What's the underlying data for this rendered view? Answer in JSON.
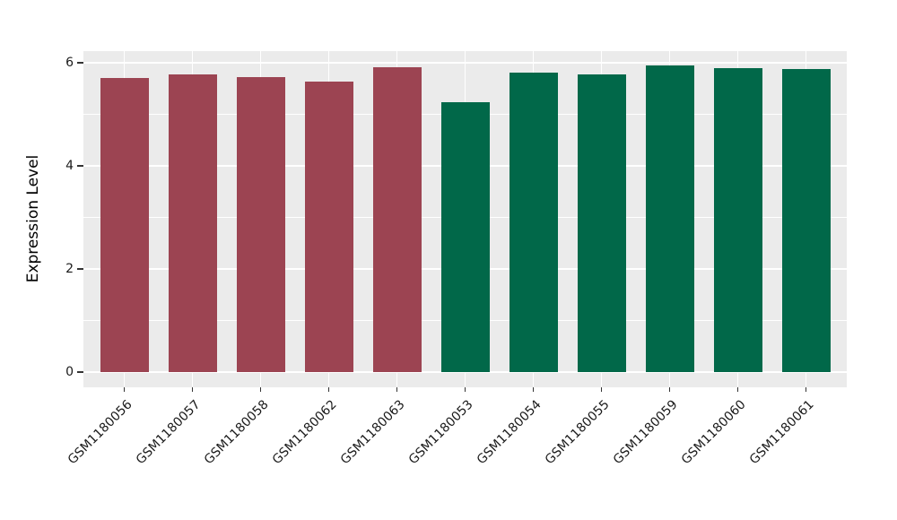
{
  "figure": {
    "background": "#FFFFFF"
  },
  "chart_data": {
    "type": "bar",
    "title": "",
    "xlabel": "",
    "ylabel": "Expression Level",
    "categories": [
      "GSM1180056",
      "GSM1180057",
      "GSM1180058",
      "GSM1180062",
      "GSM1180063",
      "GSM1180053",
      "GSM1180054",
      "GSM1180055",
      "GSM1180059",
      "GSM1180060",
      "GSM1180061"
    ],
    "values": [
      5.7,
      5.77,
      5.72,
      5.63,
      5.91,
      5.24,
      5.81,
      5.77,
      5.94,
      5.9,
      5.87
    ],
    "bar_colors": [
      "#9C4452",
      "#9C4452",
      "#9C4452",
      "#9C4452",
      "#9C4452",
      "#016849",
      "#016849",
      "#016849",
      "#016849",
      "#016849",
      "#016849"
    ],
    "groups": [
      {
        "color": "#9C4452",
        "samples": [
          "GSM1180056",
          "GSM1180057",
          "GSM1180058",
          "GSM1180062",
          "GSM1180063"
        ]
      },
      {
        "color": "#016849",
        "samples": [
          "GSM1180053",
          "GSM1180054",
          "GSM1180055",
          "GSM1180059",
          "GSM1180060",
          "GSM1180061"
        ]
      }
    ],
    "ylim": [
      -0.3,
      6.23
    ],
    "yticks": [
      0,
      2,
      4,
      6
    ],
    "yticks_minor": [
      1,
      3,
      5
    ],
    "x_tick_rotation": 45,
    "grid": true,
    "legend": "none",
    "panel_bg": "#EBEBEB",
    "grid_color": "#FFFFFF",
    "tick_color": "#333333",
    "text_color": "#1A1A1A"
  }
}
